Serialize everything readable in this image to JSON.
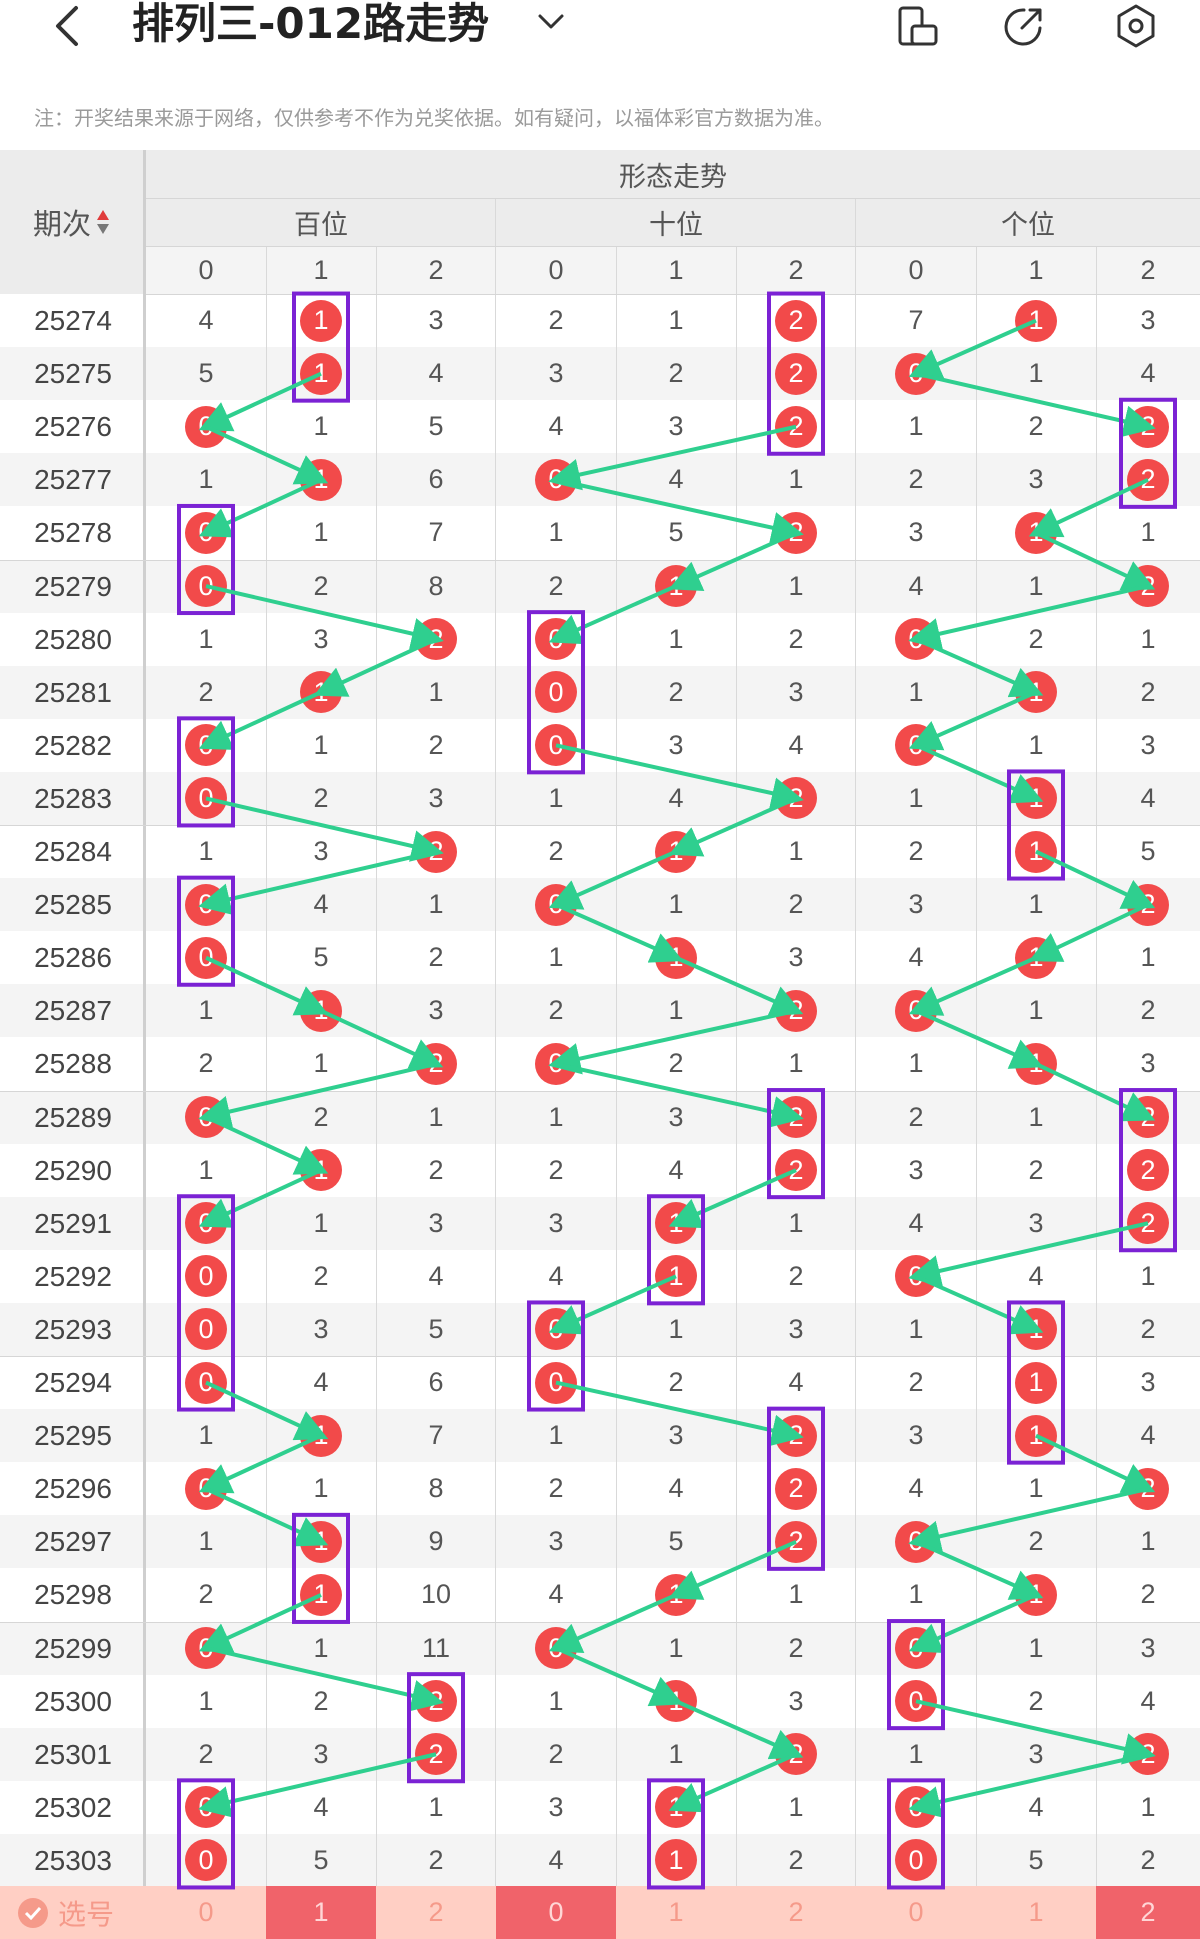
{
  "header": {
    "title": "排列三-012路走势",
    "icons": [
      "back-icon",
      "chevron-down-icon",
      "screen-rotate-icon",
      "share-icon",
      "settings-icon"
    ]
  },
  "note": "注：开奖结果来源于网络，仅供参考不作为兑奖依据。如有疑问，以福体彩官方数据为准。",
  "table": {
    "period_header": "期次",
    "group_title": "形态走势",
    "positions": [
      "百位",
      "十位",
      "个位"
    ],
    "digits": [
      "0",
      "1",
      "2"
    ],
    "rows": [
      {
        "period": "25274",
        "cells": [
          4,
          1,
          3,
          2,
          1,
          2,
          7,
          1,
          3
        ],
        "hits": [
          1,
          2,
          1
        ]
      },
      {
        "period": "25275",
        "cells": [
          5,
          1,
          4,
          3,
          2,
          2,
          0,
          1,
          4
        ],
        "hits": [
          1,
          2,
          0
        ]
      },
      {
        "period": "25276",
        "cells": [
          0,
          1,
          5,
          4,
          3,
          2,
          1,
          2,
          2
        ],
        "hits": [
          0,
          2,
          2
        ]
      },
      {
        "period": "25277",
        "cells": [
          1,
          1,
          6,
          0,
          4,
          1,
          2,
          3,
          2
        ],
        "hits": [
          1,
          0,
          2
        ]
      },
      {
        "period": "25278",
        "cells": [
          0,
          1,
          7,
          1,
          5,
          2,
          3,
          1,
          1
        ],
        "hits": [
          0,
          2,
          1
        ]
      },
      {
        "period": "25279",
        "cells": [
          0,
          2,
          8,
          2,
          1,
          1,
          4,
          1,
          2
        ],
        "hits": [
          0,
          1,
          2
        ]
      },
      {
        "period": "25280",
        "cells": [
          1,
          3,
          2,
          0,
          1,
          2,
          0,
          2,
          1
        ],
        "hits": [
          2,
          0,
          0
        ]
      },
      {
        "period": "25281",
        "cells": [
          2,
          1,
          1,
          0,
          2,
          3,
          1,
          1,
          2
        ],
        "hits": [
          1,
          0,
          1
        ]
      },
      {
        "period": "25282",
        "cells": [
          0,
          1,
          2,
          0,
          3,
          4,
          0,
          1,
          3
        ],
        "hits": [
          0,
          0,
          0
        ]
      },
      {
        "period": "25283",
        "cells": [
          0,
          2,
          3,
          1,
          4,
          2,
          1,
          1,
          4
        ],
        "hits": [
          0,
          2,
          1
        ]
      },
      {
        "period": "25284",
        "cells": [
          1,
          3,
          2,
          2,
          1,
          1,
          2,
          1,
          5
        ],
        "hits": [
          2,
          1,
          1
        ]
      },
      {
        "period": "25285",
        "cells": [
          0,
          4,
          1,
          0,
          1,
          2,
          3,
          1,
          2
        ],
        "hits": [
          0,
          0,
          2
        ]
      },
      {
        "period": "25286",
        "cells": [
          0,
          5,
          2,
          1,
          1,
          3,
          4,
          1,
          1
        ],
        "hits": [
          0,
          1,
          1
        ]
      },
      {
        "period": "25287",
        "cells": [
          1,
          1,
          3,
          2,
          1,
          2,
          0,
          1,
          2
        ],
        "hits": [
          1,
          2,
          0
        ]
      },
      {
        "period": "25288",
        "cells": [
          2,
          1,
          2,
          0,
          2,
          1,
          1,
          1,
          3
        ],
        "hits": [
          2,
          0,
          1
        ]
      },
      {
        "period": "25289",
        "cells": [
          0,
          2,
          1,
          1,
          3,
          2,
          2,
          1,
          2
        ],
        "hits": [
          0,
          2,
          2
        ]
      },
      {
        "period": "25290",
        "cells": [
          1,
          1,
          2,
          2,
          4,
          2,
          3,
          2,
          2
        ],
        "hits": [
          1,
          2,
          2
        ]
      },
      {
        "period": "25291",
        "cells": [
          0,
          1,
          3,
          3,
          1,
          1,
          4,
          3,
          2
        ],
        "hits": [
          0,
          1,
          2
        ]
      },
      {
        "period": "25292",
        "cells": [
          0,
          2,
          4,
          4,
          1,
          2,
          0,
          4,
          1
        ],
        "hits": [
          0,
          1,
          0
        ]
      },
      {
        "period": "25293",
        "cells": [
          0,
          3,
          5,
          0,
          1,
          3,
          1,
          1,
          2
        ],
        "hits": [
          0,
          0,
          1
        ]
      },
      {
        "period": "25294",
        "cells": [
          0,
          4,
          6,
          0,
          2,
          4,
          2,
          1,
          3
        ],
        "hits": [
          0,
          0,
          1
        ]
      },
      {
        "period": "25295",
        "cells": [
          1,
          1,
          7,
          1,
          3,
          2,
          3,
          1,
          4
        ],
        "hits": [
          1,
          2,
          1
        ]
      },
      {
        "period": "25296",
        "cells": [
          0,
          1,
          8,
          2,
          4,
          2,
          4,
          1,
          2
        ],
        "hits": [
          0,
          2,
          2
        ]
      },
      {
        "period": "25297",
        "cells": [
          1,
          1,
          9,
          3,
          5,
          2,
          0,
          2,
          1
        ],
        "hits": [
          1,
          2,
          0
        ]
      },
      {
        "period": "25298",
        "cells": [
          2,
          1,
          10,
          4,
          1,
          1,
          1,
          1,
          2
        ],
        "hits": [
          1,
          1,
          1
        ]
      },
      {
        "period": "25299",
        "cells": [
          0,
          1,
          11,
          0,
          1,
          2,
          0,
          1,
          3
        ],
        "hits": [
          0,
          0,
          0
        ]
      },
      {
        "period": "25300",
        "cells": [
          1,
          2,
          2,
          1,
          1,
          3,
          0,
          2,
          4
        ],
        "hits": [
          2,
          1,
          0
        ]
      },
      {
        "period": "25301",
        "cells": [
          2,
          3,
          2,
          2,
          1,
          2,
          1,
          3,
          2
        ],
        "hits": [
          2,
          2,
          2
        ]
      },
      {
        "period": "25302",
        "cells": [
          0,
          4,
          1,
          3,
          1,
          1,
          0,
          4,
          1
        ],
        "hits": [
          0,
          1,
          0
        ]
      },
      {
        "period": "25303",
        "cells": [
          0,
          5,
          2,
          4,
          1,
          2,
          0,
          5,
          2
        ],
        "hits": [
          0,
          1,
          0
        ]
      }
    ]
  },
  "bottom": {
    "label": "选号",
    "cells": [
      "0",
      "1",
      "2",
      "0",
      "1",
      "2",
      "0",
      "1",
      "2"
    ],
    "selected": [
      1,
      0,
      2
    ]
  },
  "colors": {
    "ball": "#f24a4a",
    "box": "#7b22d4",
    "arrow": "#2fcf8f",
    "header_bg": "#ececec",
    "bottom_bg": "#ffcfc4",
    "bottom_selected": "#f0636a"
  }
}
